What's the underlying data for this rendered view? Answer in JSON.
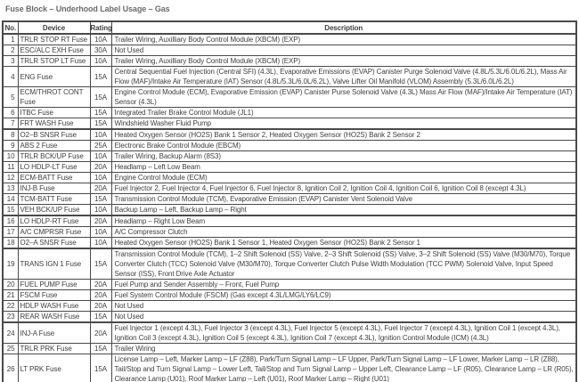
{
  "page": {
    "title": "Fuse Block – Underhood Label Usage – Gas"
  },
  "colors": {
    "background": "#ffffff",
    "title_text": "#6b6b6b",
    "body_text": "#3f3f3f",
    "border": "#4a4a4a"
  },
  "table": {
    "columns": [
      "No.",
      "Device",
      "Rating",
      "Description"
    ],
    "rows": [
      {
        "no": "1",
        "device": "TRLR STOP RT Fuse",
        "rating": "10A",
        "description": "Trailer Wiring, Auxilliary Body Control Module (XBCM) (EXP)",
        "group_end": false
      },
      {
        "no": "2",
        "device": "ESC/ALC EXH Fuse",
        "rating": "30A",
        "description": "Not Used",
        "group_end": false
      },
      {
        "no": "3",
        "device": "TRLR STOP LT Fuse",
        "rating": "10A",
        "description": "Trailer Wiring, Auxilliary Body Control Module (XBCM) (EXP)",
        "group_end": false
      },
      {
        "no": "4",
        "device": "ENG Fuse",
        "rating": "15A",
        "description": "Central Sequential Fuel Injection (Central SFI) (4.3L), Evaporative Emissions (EVAP) Canister Purge Solenoid Valve (4.8L/5.3L/6.0L/6.2L), Mass Air Flow (MAF)/Intake Air Temperature (IAT) Sensor (4.8L/5.3L/6.0L/6.2L), Valve Lifter Oil Manifold (VLOM) Assembly (5.3L/6.0L/6.2L)",
        "group_end": false
      },
      {
        "no": "5",
        "device": "ECM/THROT CONT Fuse",
        "rating": "15A",
        "description": "Engine Control Module (ECM), Evaporative Emission (EVAP) Canister Purse Solenoid Valve (4.3L) Mass Air Flow (MAF)/Intake Air Temperature (IAT) Sensor (4.3L)",
        "group_end": false
      },
      {
        "no": "6",
        "device": "ITBC Fuse",
        "rating": "15A",
        "description": "Integrated Trailer Brake Control Module (JL1)",
        "group_end": false
      },
      {
        "no": "7",
        "device": "FRT WASH Fuse",
        "rating": "15A",
        "description": "Windshield Washer Fluid Pump",
        "group_end": true
      },
      {
        "no": "8",
        "device": "O2–B SNSR Fuse",
        "rating": "10A",
        "description": "Heated Oxygen Sensor (HO2S) Bank 1 Sensor 2, Heated Oxygen Sensor (HO2S) Bank 2 Sensor 2",
        "group_end": false
      },
      {
        "no": "9",
        "device": "ABS 2 Fuse",
        "rating": "25A",
        "description": "Electronic Brake Control Module (EBCM)",
        "group_end": false
      },
      {
        "no": "10",
        "device": "TRLR BCK/UP Fuse",
        "rating": "10A",
        "description": "Trailer Wiring, Backup Alarm (8S3)",
        "group_end": false
      },
      {
        "no": "11",
        "device": "LO HDLP-LT Fuse",
        "rating": "20A",
        "description": "Headlamp – Left Low Beam",
        "group_end": false
      },
      {
        "no": "12",
        "device": "ECM-BATT Fuse",
        "rating": "10A",
        "description": "Engine Control Module (ECM)",
        "group_end": false
      },
      {
        "no": "13",
        "device": "INJ-B Fuse",
        "rating": "20A",
        "description": "Fuel Injector 2, Fuel Injector 4, Fuel Injector 6, Fuel Injector 8, Ignition Coil 2, Ignition Coil 4, Ignition Coil 6, Ignition Coil 8 (except 4.3L)",
        "group_end": false
      },
      {
        "no": "14",
        "device": "TCM-BATT Fuse",
        "rating": "15A",
        "description": "Transmission Control Module (TCM), Evaporative Emission (EVAP) Canister Vent Solenoid Valve",
        "group_end": false
      },
      {
        "no": "15",
        "device": "VEH BCK/UP Fuse",
        "rating": "10A",
        "description": "Backup Lamp – Left, Backup Lamp – Right",
        "group_end": true
      },
      {
        "no": "16",
        "device": "LO HDLP-RT Fuse",
        "rating": "20A",
        "description": "Headlamp – Right Low Beam",
        "group_end": false
      },
      {
        "no": "17",
        "device": "A/C CMPRSR Fuse",
        "rating": "10A",
        "description": "A/C Compressor Clutch",
        "group_end": false
      },
      {
        "no": "18",
        "device": "O2–A SNSR Fuse",
        "rating": "10A",
        "description": "Heated Oxygen Sensor (HO2S) Bank 1 Sensor 1, Heated Oxygen Sensor (HO2S) Bank 2 Sensor 1",
        "group_end": true
      },
      {
        "no": "19",
        "device": "TRANS IGN 1 Fuse",
        "rating": "15A",
        "description": "Transmission Control Module (TCM), 1–2 Shift Solenoid (SS) Valve, 2–3 Shift Solenoid (SS) Valve, 3–2 Shift Solenoid (SS) Valve (M30/M70), Torque Converter Clutch (TCC) Solenoid Valve (M30/M70), Torque Converter Clutch Pulse Width Modulation (TCC PWM) Solenoid Valve, Input Speed Sensor (ISS), Front Drive Axle Actuator",
        "group_end": false
      },
      {
        "no": "20",
        "device": "FUEL PUMP Fuse",
        "rating": "20A",
        "description": "Fuel Pump and Sender Assembly – Front, Fuel Pump",
        "group_end": false
      },
      {
        "no": "21",
        "device": "FSCM Fuse",
        "rating": "20A",
        "description": "Fuel System Control Module (FSCM) (Gas except 4.3L/LMG/LY6/LC9)",
        "group_end": false
      },
      {
        "no": "22",
        "device": "HDLP WASH Fuse",
        "rating": "20A",
        "description": "Not Used",
        "group_end": false
      },
      {
        "no": "23",
        "device": "REAR WASH Fuse",
        "rating": "15A",
        "description": "Not Used",
        "group_end": true
      },
      {
        "no": "24",
        "device": "INJ-A Fuse",
        "rating": "20A",
        "description": "Fuel Injector 1 (except 4.3L), Fuel Injector 3 (except 4.3L), Fuel Injector 5 (except 4.3L), Fuel Injector 7 (except 4.3L), Ignition Coil 1 (except 4.3L), Ignition Coil 3 (except 4.3L), Ignition Coil 5 (except 4.3L), Ignition Coil 7 (except 4.3L), Ignition Control Module (ICM) (4.3L)",
        "group_end": false
      },
      {
        "no": "25",
        "device": "TRLR PRK Fuse",
        "rating": "15A",
        "description": "Trailer Wiring",
        "group_end": false
      },
      {
        "no": "26",
        "device": "LT PRK Fuse",
        "rating": "15A",
        "description": "License Lamp – Left, Marker Lamp – LF (Z88), Park/Turn Signal Lamp – LF Upper, Park/Turn Signal Lamp – LF Lower, Marker Lamp – LR (Z88), Tail/Stop and Turn Signal Lamp – Lower Left, Tail/Stop and Turn Signal Lamp – Upper Left, Clearance Lamp – LF (R05), Clearance Lamp – LR (R05), Clearance Lamp (U01), Roof Marker Lamp – Left (U01), Roof Marker Lamp – Right (U01)",
        "group_end": false
      }
    ]
  }
}
